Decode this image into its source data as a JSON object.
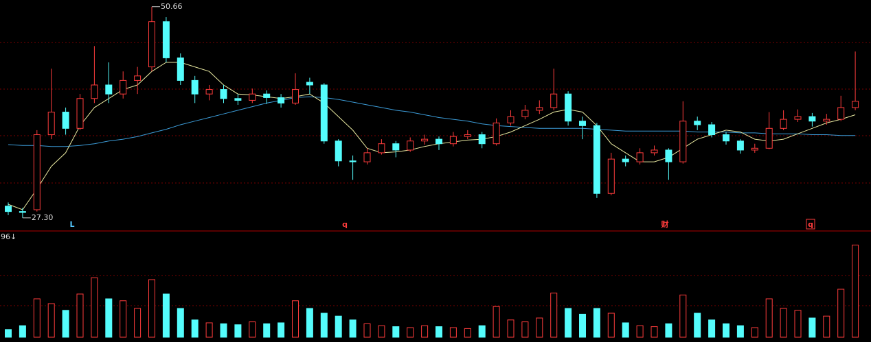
{
  "chart_data": {
    "type": "candlestick",
    "open": [
      28.6,
      28.0,
      28.2,
      36.5,
      39.0,
      37.2,
      40.5,
      42.0,
      41.0,
      42.5,
      44.0,
      49.0,
      45.0,
      42.5,
      41.0,
      41.5,
      40.5,
      40.3,
      41.0,
      40.6,
      40.0,
      42.3,
      42.0,
      35.8,
      33.6,
      33.5,
      34.5,
      35.5,
      34.8,
      35.8,
      36.0,
      35.5,
      36.3,
      36.5,
      35.5,
      37.8,
      38.5,
      39.2,
      39.5,
      41.0,
      38.0,
      37.5,
      30.0,
      33.8,
      33.5,
      34.5,
      34.8,
      33.5,
      38.0,
      37.6,
      36.5,
      35.8,
      34.8,
      35.0,
      37.2,
      38.2,
      38.5,
      38.0,
      38.2,
      39.5
    ],
    "high": [
      29.0,
      28.4,
      37.0,
      43.8,
      39.5,
      41.0,
      46.3,
      44.5,
      43.5,
      44.0,
      50.66,
      49.5,
      45.5,
      43.0,
      42.0,
      42.0,
      41.0,
      41.6,
      41.4,
      41.0,
      43.3,
      42.8,
      42.2,
      36.0,
      34.2,
      35.0,
      36.0,
      35.8,
      36.2,
      36.5,
      36.3,
      36.8,
      37.0,
      36.8,
      38.3,
      39.2,
      39.8,
      40.3,
      43.8,
      41.3,
      38.5,
      37.8,
      34.5,
      34.2,
      35.0,
      35.3,
      35.0,
      40.2,
      38.5,
      37.9,
      36.8,
      36.0,
      35.5,
      39.0,
      39.2,
      39.3,
      38.9,
      38.8,
      40.8,
      45.7
    ],
    "low": [
      27.6,
      27.3,
      28.0,
      36.0,
      36.5,
      37.0,
      40.0,
      40.0,
      40.5,
      41.0,
      43.5,
      44.5,
      42.0,
      40.0,
      40.3,
      40.0,
      39.8,
      40.0,
      39.9,
      39.5,
      39.8,
      41.0,
      35.5,
      33.0,
      31.5,
      33.2,
      34.3,
      34.0,
      34.6,
      35.4,
      34.8,
      35.2,
      36.0,
      35.0,
      35.3,
      37.5,
      38.2,
      38.8,
      39.2,
      37.5,
      36.0,
      29.5,
      29.8,
      33.0,
      33.2,
      34.2,
      31.5,
      33.3,
      37.0,
      36.2,
      35.4,
      34.4,
      34.5,
      34.9,
      37.0,
      37.9,
      37.4,
      37.6,
      38.0,
      39.2
    ],
    "close": [
      28.0,
      27.9,
      36.5,
      39.0,
      37.2,
      40.5,
      42.0,
      41.0,
      42.5,
      43.0,
      49.0,
      45.0,
      42.5,
      41.0,
      41.5,
      40.5,
      40.3,
      41.0,
      40.6,
      40.0,
      41.5,
      42.0,
      35.8,
      33.6,
      33.5,
      34.5,
      35.5,
      34.8,
      35.8,
      36.0,
      35.5,
      36.3,
      36.5,
      35.5,
      37.8,
      38.5,
      39.2,
      39.5,
      41.0,
      38.0,
      37.5,
      30.0,
      33.8,
      33.5,
      34.5,
      34.8,
      33.5,
      38.0,
      37.6,
      36.5,
      35.8,
      34.8,
      35.0,
      37.2,
      38.2,
      38.5,
      38.0,
      38.2,
      39.5,
      40.2
    ],
    "volume": [
      8,
      12,
      40,
      35,
      28,
      45,
      62,
      40,
      38,
      30,
      60,
      45,
      30,
      18,
      15,
      14,
      13,
      16,
      14,
      15,
      38,
      30,
      25,
      22,
      18,
      14,
      12,
      11,
      10,
      12,
      11,
      10,
      9,
      12,
      32,
      18,
      16,
      20,
      46,
      30,
      24,
      30,
      25,
      15,
      12,
      11,
      14,
      44,
      25,
      18,
      14,
      12,
      10,
      40,
      30,
      28,
      20,
      22,
      50,
      96
    ],
    "ma_lines": [
      {
        "color": "#3c9cd8",
        "values": [
          35.4,
          35.3,
          35.3,
          35.2,
          35.2,
          35.3,
          35.5,
          35.8,
          36.0,
          36.3,
          36.7,
          37.1,
          37.6,
          38.0,
          38.4,
          38.8,
          39.2,
          39.6,
          40.0,
          40.3,
          40.6,
          40.7,
          40.6,
          40.4,
          40.1,
          39.8,
          39.5,
          39.2,
          39.0,
          38.7,
          38.4,
          38.2,
          38.0,
          37.7,
          37.5,
          37.4,
          37.3,
          37.2,
          37.2,
          37.2,
          37.2,
          37.1,
          37.0,
          36.9,
          36.9,
          36.9,
          36.9,
          36.9,
          36.8,
          36.8,
          36.8,
          36.7,
          36.7,
          36.6,
          36.6,
          36.6,
          36.5,
          36.5,
          36.4,
          36.4
        ]
      },
      {
        "color": "#e8e8a0",
        "values": [
          28.8,
          28.2,
          30.5,
          33.0,
          34.5,
          37.5,
          39.5,
          40.5,
          41.5,
          42.0,
          43.5,
          44.5,
          44.5,
          44.0,
          43.5,
          42.0,
          41.0,
          40.9,
          40.7,
          40.5,
          40.7,
          41.0,
          40.0,
          38.5,
          37.0,
          35.0,
          34.5,
          34.6,
          34.8,
          35.2,
          35.5,
          35.7,
          35.9,
          36.0,
          36.3,
          36.8,
          37.5,
          38.2,
          39.0,
          39.3,
          39.0,
          37.5,
          35.5,
          34.5,
          33.5,
          33.5,
          34.0,
          35.0,
          36.0,
          36.5,
          37.0,
          36.8,
          36.0,
          35.8,
          36.0,
          36.6,
          37.2,
          37.8,
          38.2,
          38.7
        ]
      }
    ],
    "up_color": "#ff3c3c",
    "down_color": "#54fcfc",
    "ylim": [
      26.0,
      51.4
    ],
    "volume_ylim": [
      0,
      100
    ],
    "high_label": "50.66",
    "low_label": "27.30",
    "volume_label": "96↓",
    "markers": [
      "L",
      "q",
      "财",
      "q"
    ]
  }
}
